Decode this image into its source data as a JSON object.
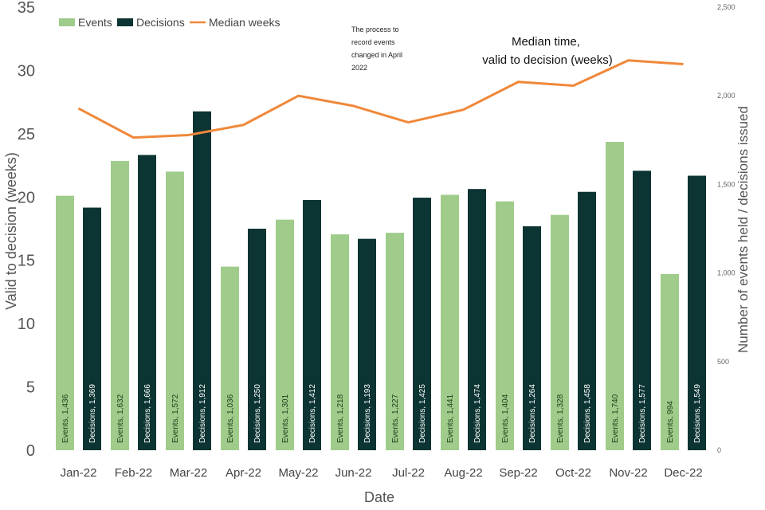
{
  "chart_data": {
    "type": "bar",
    "categories": [
      "Jan-22",
      "Feb-22",
      "Mar-22",
      "Apr-22",
      "May-22",
      "Jun-22",
      "Jul-22",
      "Aug-22",
      "Sep-22",
      "Oct-22",
      "Nov-22",
      "Dec-22"
    ],
    "series": [
      {
        "name": "Events",
        "axis": "right",
        "color": "#9fcc8a",
        "label_prefix": "Events",
        "values": [
          1436,
          1632,
          1572,
          1036,
          1301,
          1218,
          1227,
          1441,
          1404,
          1328,
          1740,
          994
        ],
        "value_labels": [
          "1,436",
          "1,632",
          "1,572",
          "1,036",
          "1,301",
          "1,218",
          "1,227",
          "1,441",
          "1,404",
          "1,328",
          "1,740",
          "994"
        ]
      },
      {
        "name": "Decisions",
        "axis": "right",
        "color": "#0b3432",
        "label_prefix": "Decisions",
        "values": [
          1369,
          1666,
          1912,
          1250,
          1412,
          1193,
          1425,
          1474,
          1264,
          1458,
          1577,
          1549
        ],
        "value_labels": [
          "1,369",
          "1,666",
          "1,912",
          "1,250",
          "1,412",
          "1,193",
          "1,425",
          "1,474",
          "1,264",
          "1,458",
          "1,577",
          "1,549"
        ]
      },
      {
        "name": "Median weeks",
        "type": "line",
        "axis": "left",
        "color": "#f0883a",
        "values": [
          27.0,
          24.7,
          24.9,
          25.7,
          28.0,
          27.2,
          25.9,
          26.9,
          29.1,
          28.8,
          30.8,
          30.5
        ]
      }
    ],
    "xlabel": "Date",
    "ylabel": "Valid to decision (weeks)",
    "y2label": "Number of events held / decisions issued",
    "ylim": [
      0,
      35
    ],
    "y2lim": [
      0,
      2500
    ],
    "yticks": [
      "0",
      "5",
      "10",
      "15",
      "20",
      "25",
      "30",
      "35"
    ],
    "y2ticks": [
      "0",
      "500",
      "1,000",
      "1,500",
      "2,000",
      "2,500"
    ],
    "legend": [
      "Events",
      "Decisions",
      "Median weeks"
    ],
    "legend_position": "top-left",
    "annotations": {
      "note": [
        "The process to",
        "record events",
        "changed in April",
        "2022"
      ],
      "median_label": [
        "Median time,",
        "valid to decision (weeks)"
      ]
    }
  }
}
